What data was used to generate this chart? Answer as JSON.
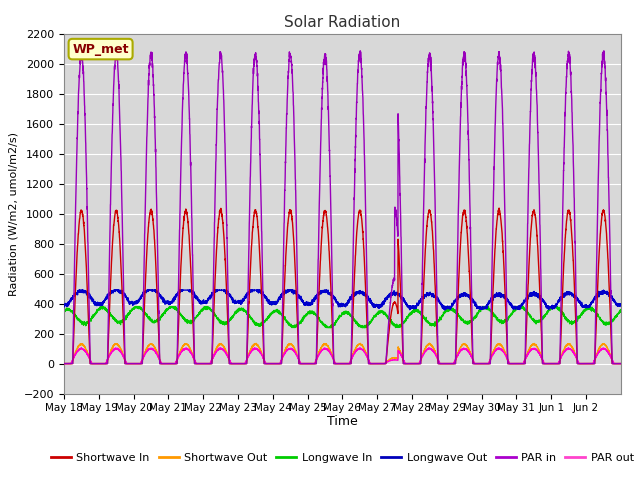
{
  "title": "Solar Radiation",
  "ylabel": "Radiation (W/m2, umol/m2/s)",
  "xlabel": "Time",
  "ylim": [
    -200,
    2200
  ],
  "yticks": [
    -200,
    0,
    200,
    400,
    600,
    800,
    1000,
    1200,
    1400,
    1600,
    1800,
    2000,
    2200
  ],
  "bg_color": "#d8d8d8",
  "annotation_text": "WP_met",
  "annotation_bg": "#ffffcc",
  "annotation_border": "#aaaa00",
  "annotation_text_color": "#880000",
  "series_colors": {
    "shortwave_in": "#cc0000",
    "shortwave_out": "#ff9900",
    "longwave_in": "#00cc00",
    "longwave_out": "#0000cc",
    "par_in": "#9900bb",
    "par_out": "#ff00cc"
  },
  "legend_colors": {
    "shortwave_in": "#cc0000",
    "shortwave_out": "#ff9900",
    "longwave_in": "#00cc00",
    "longwave_out": "#0000bb",
    "par_in": "#aa00cc",
    "par_out": "#ff44cc"
  },
  "legend_labels": [
    "Shortwave In",
    "Shortwave Out",
    "Longwave In",
    "Longwave Out",
    "PAR in",
    "PAR out"
  ],
  "n_days": 16,
  "shortwave_in_peak": 1020,
  "shortwave_out_peak": 130,
  "longwave_in_base": 310,
  "longwave_in_amp": 50,
  "longwave_out_base": 390,
  "longwave_out_amp": 90,
  "par_in_peak": 2060,
  "par_out_peak": 100,
  "samples_per_day": 288,
  "x_tick_labels": [
    "May 18",
    "May 19",
    "May 20",
    "May 21",
    "May 22",
    "May 23",
    "May 24",
    "May 25",
    "May 26",
    "May 27",
    "May 28",
    "May 29",
    "May 30",
    "May 31",
    "Jun 1",
    "Jun 2"
  ]
}
